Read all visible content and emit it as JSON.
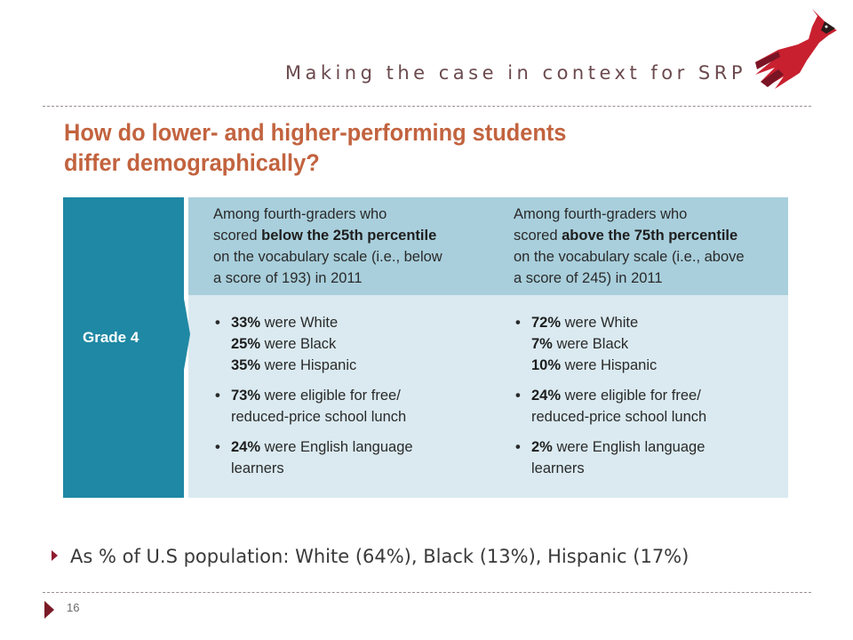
{
  "header": {
    "title": "Making the case in context for SRP"
  },
  "figure": {
    "heading_line1": "How do lower- and higher-performing students",
    "heading_line2": "differ demographically?",
    "row_label": "Grade 4",
    "columns": [
      {
        "head_pre": "Among fourth-graders who",
        "head_scored": "scored ",
        "head_bold": "below the 25th percentile",
        "head_line3": "on the vocabulary scale (i.e., below",
        "head_line4": "a score of 193) in 2011",
        "stats": [
          {
            "lines": [
              {
                "value": "33%",
                "text": " were White"
              },
              {
                "value": "25%",
                "text": " were Black"
              },
              {
                "value": "35%",
                "text": " were Hispanic"
              }
            ]
          },
          {
            "lines": [
              {
                "value": "73%",
                "text": " were eligible for free/"
              },
              {
                "value": "",
                "text": "reduced-price school lunch"
              }
            ]
          },
          {
            "lines": [
              {
                "value": "24%",
                "text": " were English language"
              },
              {
                "value": "",
                "text": "learners"
              }
            ]
          }
        ]
      },
      {
        "head_pre": "Among fourth-graders who",
        "head_scored": "scored ",
        "head_bold": "above the 75th percentile",
        "head_line3": "on the vocabulary scale (i.e., above",
        "head_line4": "a score of 245) in 2011",
        "stats": [
          {
            "lines": [
              {
                "value": "72%",
                "text": " were White"
              },
              {
                "value": "7%",
                "text": " were Black"
              },
              {
                "value": "10%",
                "text": " were Hispanic"
              }
            ]
          },
          {
            "lines": [
              {
                "value": "24%",
                "text": " were eligible for free/"
              },
              {
                "value": "",
                "text": "reduced-price school lunch"
              }
            ]
          },
          {
            "lines": [
              {
                "value": "2%",
                "text": " were English language"
              },
              {
                "value": "",
                "text": "learners"
              }
            ]
          }
        ]
      }
    ]
  },
  "bullet": {
    "text": "As % of U.S population: White (64%), Black (13%), Hispanic (17%)"
  },
  "footer": {
    "page_number": "16"
  },
  "colors": {
    "title_text": "#6b4a4e",
    "heading_orange": "#c2633f",
    "grade_teal": "#1f88a4",
    "header_band": "#a9cfdc",
    "body_band": "#daeaf0",
    "accent_maroon": "#8e1b2e",
    "logo_red": "#c8202f"
  },
  "icons": {
    "logo": "cardinal-logo-icon",
    "bullet": "triangle-bullet-icon"
  }
}
